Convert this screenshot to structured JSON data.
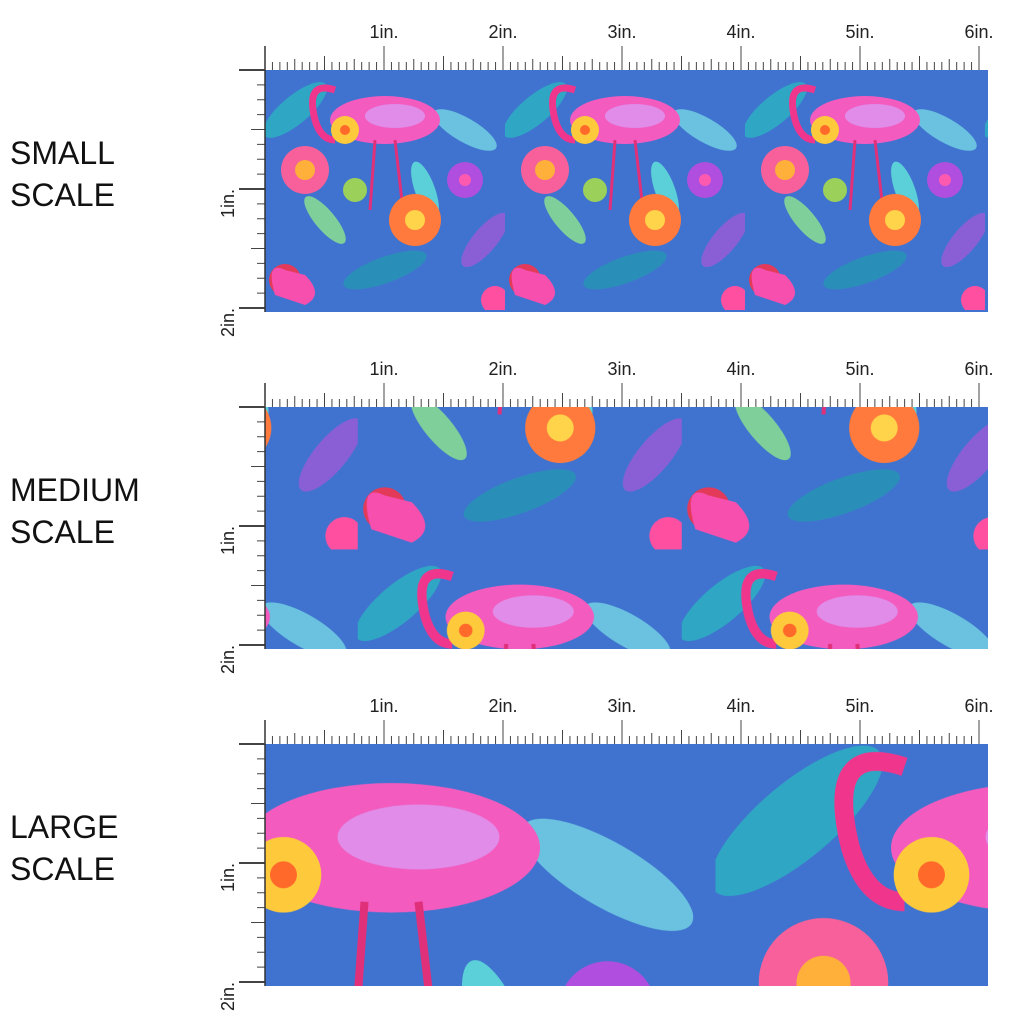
{
  "rows": [
    {
      "label": [
        "SMALL",
        "SCALE"
      ]
    },
    {
      "label": [
        "MEDIUM",
        "SCALE"
      ]
    },
    {
      "label": [
        "LARGE",
        "SCALE"
      ]
    }
  ],
  "ruler": {
    "top": [
      "1in.",
      "2in.",
      "3in.",
      "4in.",
      "5in.",
      "6in."
    ],
    "side": [
      "1in.",
      "2in."
    ]
  }
}
